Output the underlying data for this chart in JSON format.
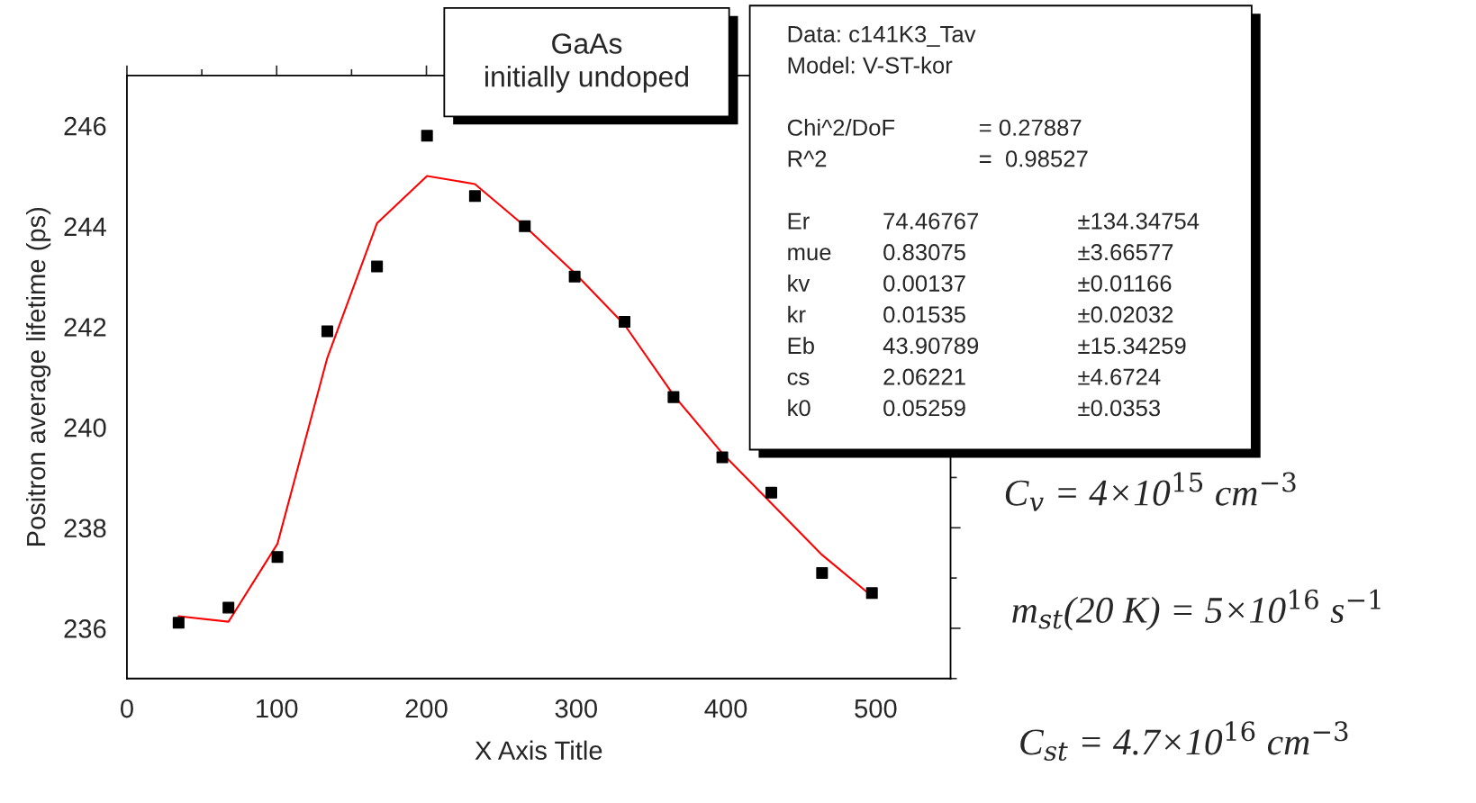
{
  "chart_data": {
    "type": "scatter",
    "xlabel": "X Axis Title",
    "ylabel": "Positron average lifetime (ps)",
    "xlim": [
      0,
      550
    ],
    "xticks": [
      0,
      100,
      200,
      300,
      400,
      500
    ],
    "ylim": [
      235,
      247
    ],
    "yticks": [
      236,
      238,
      240,
      242,
      244,
      246
    ],
    "grid": false,
    "legend": false,
    "series": [
      {
        "marker": "square",
        "color": "#000000",
        "x": [
          34.5,
          67.8,
          100.5,
          133.8,
          167,
          200.4,
          232.4,
          265.7,
          299,
          332.3,
          365,
          397.6,
          430.3,
          464.2,
          497.5
        ],
        "values": [
          236.11,
          236.41,
          237.42,
          241.91,
          243.2,
          245.8,
          244.6,
          244.0,
          243.0,
          242.1,
          240.6,
          239.4,
          238.7,
          237.1,
          236.7
        ]
      },
      {
        "type": "line",
        "marker": "none",
        "color": "#ff0000",
        "x": [
          34.5,
          67.8,
          100.5,
          133.8,
          167,
          200.4,
          232.4,
          265.7,
          299,
          332.3,
          365,
          397.6,
          430.3,
          464.2,
          497.5
        ],
        "values": [
          236.24,
          236.13,
          237.68,
          241.38,
          244.06,
          245.0,
          244.84,
          244.0,
          243.07,
          242.04,
          240.64,
          239.48,
          238.49,
          237.46,
          236.64
        ]
      }
    ],
    "annotations": [
      "GaAs\ninitially undoped",
      "Data: c141K3_Tav\nModel: V-ST-kor\n\nChi^2/DoF\t= 0.27887\nR^2\t=  0.98527\n\nEr\t74.46767\t±134.34754\nmue\t0.83075\t±3.66577\nkv\t0.00137\t±0.01166\nkr\t0.01535\t±0.02032\nEb\t43.90789\t±15.34259\ncs\t2.06221\t±4.6724\nk0\t0.05259\t±0.0353",
      "C$_{v}$ = 4×10$^{15}$ cm$^{−3}$",
      "m$_{st}$(20 K) = 5×10$^{16}$ s$^{−1}$",
      "C$_{st}$ = 4.7×10$^{16}$ cm$^{−3}$"
    ]
  }
}
